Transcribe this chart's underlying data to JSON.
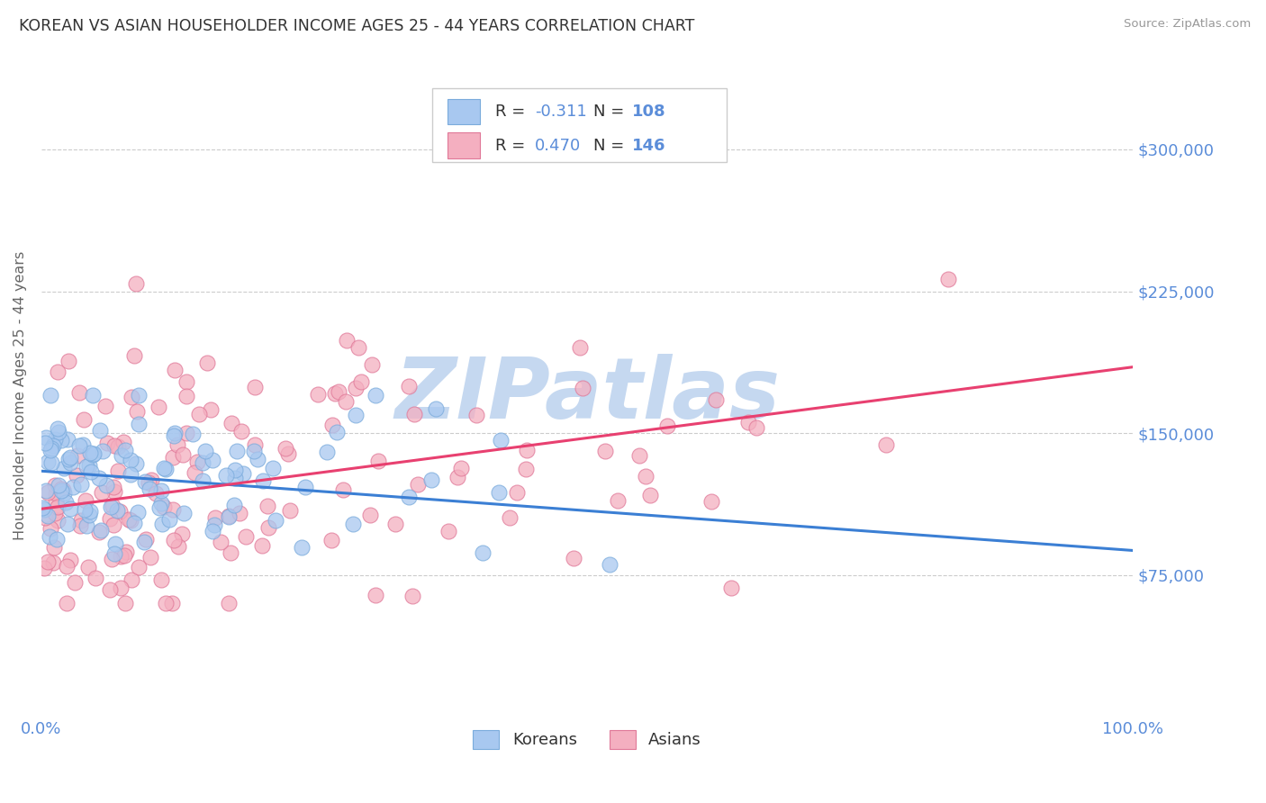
{
  "title": "KOREAN VS ASIAN HOUSEHOLDER INCOME AGES 25 - 44 YEARS CORRELATION CHART",
  "source": "Source: ZipAtlas.com",
  "ylabel": "Householder Income Ages 25 - 44 years",
  "yticks": [
    75000,
    150000,
    225000,
    300000
  ],
  "ytick_labels": [
    "$75,000",
    "$150,000",
    "$225,000",
    "$300,000"
  ],
  "ymax": 340000,
  "ymin": 0,
  "xmin": 0.0,
  "xmax": 1.0,
  "background_color": "#ffffff",
  "grid_color": "#cccccc",
  "title_color": "#333333",
  "axis_label_color": "#5b8dd9",
  "watermark": "ZIPatlas",
  "watermark_color": "#c5d8f0",
  "korean_color": "#a8c8f0",
  "korean_edge_color": "#7aabdc",
  "asian_color": "#f4afc0",
  "asian_edge_color": "#e07898",
  "korean_line_color": "#3b7fd4",
  "asian_line_color": "#e84070",
  "korean_R": -0.311,
  "korean_N": 108,
  "asian_R": 0.47,
  "asian_N": 146,
  "korean_line_y0": 130000,
  "korean_line_y1": 88000,
  "asian_line_y0": 110000,
  "asian_line_y1": 185000
}
